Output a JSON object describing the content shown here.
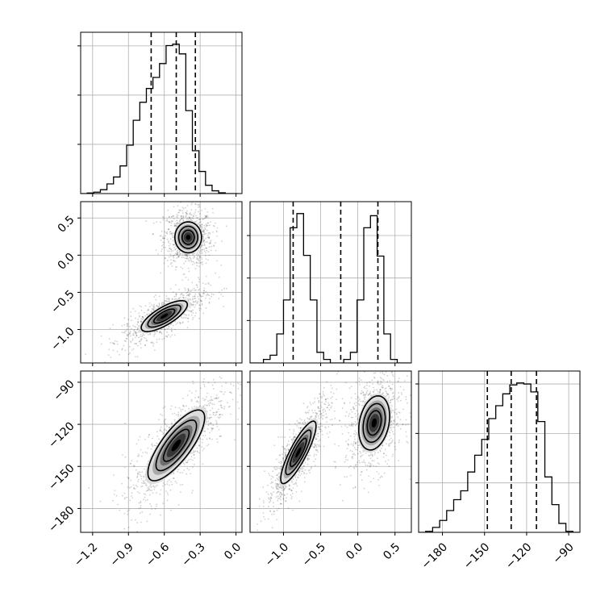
{
  "chart_data": {
    "type": "corner",
    "title": "",
    "parameters": [
      {
        "name": "",
        "range": [
          -1.3,
          0.05
        ],
        "ticks": [
          -1.2,
          -0.9,
          -0.6,
          -0.3,
          0.0
        ],
        "tick_labels": [
          "−1.2",
          "−0.9",
          "−0.6",
          "−0.3",
          "0.0"
        ]
      },
      {
        "name": "",
        "range": [
          -1.45,
          0.72
        ],
        "ticks": [
          -1.0,
          -0.5,
          0.0,
          0.5
        ],
        "tick_labels": [
          "−1.0",
          "−0.5",
          "0.0",
          "0.5"
        ]
      },
      {
        "name": "",
        "range": [
          -197,
          -82
        ],
        "ticks": [
          -180,
          -150,
          -120,
          -90
        ],
        "tick_labels": [
          "−180",
          "−150",
          "−120",
          "−90"
        ]
      }
    ],
    "histograms": [
      {
        "parameter": 0,
        "bin_edges": [
          -1.3,
          -1.245,
          -1.19,
          -1.135,
          -1.08,
          -1.025,
          -0.97,
          -0.915,
          -0.86,
          -0.805,
          -0.75,
          -0.695,
          -0.64,
          -0.585,
          -0.53,
          -0.475,
          -0.42,
          -0.365,
          -0.31,
          -0.255,
          -0.2,
          -0.145,
          -0.09,
          -0.035,
          0.02
        ],
        "counts": [
          0,
          2,
          5,
          14,
          35,
          60,
          100,
          175,
          265,
          330,
          380,
          420,
          470,
          535,
          540,
          505,
          300,
          155,
          80,
          30,
          10,
          3,
          0,
          0
        ],
        "quantiles": [
          -0.71,
          -0.5,
          -0.34
        ],
        "y_ticks": [
          178,
          356,
          534
        ]
      },
      {
        "parameter": 1,
        "bin_edges": [
          -1.45,
          -1.36,
          -1.27,
          -1.18,
          -1.09,
          -1.0,
          -0.91,
          -0.82,
          -0.73,
          -0.64,
          -0.55,
          -0.46,
          -0.37,
          -0.28,
          -0.19,
          -0.1,
          -0.01,
          0.08,
          0.17,
          0.26,
          0.35,
          0.44,
          0.53,
          0.62,
          0.71
        ],
        "counts": [
          0,
          0,
          25,
          55,
          205,
          445,
          955,
          1055,
          760,
          445,
          75,
          25,
          0,
          0,
          25,
          75,
          445,
          955,
          1040,
          755,
          205,
          25,
          0,
          0
        ],
        "quantiles": [
          -0.87,
          -0.23,
          0.27
        ],
        "y_ticks": [
          300,
          600,
          900
        ]
      },
      {
        "parameter": 2,
        "bin_edges": [
          -197,
          -192,
          -187,
          -182,
          -177,
          -172,
          -167,
          -162,
          -157,
          -152,
          -147,
          -142,
          -137,
          -132,
          -127,
          -122,
          -117,
          -112,
          -107,
          -102,
          -97,
          -92,
          -87,
          -82
        ],
        "counts": [
          0,
          5,
          25,
          60,
          110,
          165,
          210,
          305,
          390,
          470,
          575,
          640,
          700,
          745,
          755,
          750,
          710,
          560,
          280,
          140,
          45,
          5,
          0
        ],
        "quantiles": [
          -148,
          -131,
          -113
        ],
        "y_ticks": [
          250,
          500,
          750
        ]
      }
    ],
    "panels_2d": [
      {
        "x_param": 0,
        "y_param": 1,
        "modes": [
          {
            "x": -0.4,
            "y": 0.24,
            "sx": 0.075,
            "sy": 0.14,
            "rho": 0.0
          },
          {
            "x": -0.6,
            "y": -0.82,
            "sx": 0.13,
            "sy": 0.14,
            "rho": 0.75
          }
        ]
      },
      {
        "x_param": 0,
        "y_param": 2,
        "modes": [
          {
            "x": -0.5,
            "y": -135,
            "sx": 0.16,
            "sy": 17,
            "rho": 0.78
          }
        ]
      },
      {
        "x_param": 1,
        "y_param": 2,
        "modes": [
          {
            "x": 0.22,
            "y": -119,
            "sx": 0.14,
            "sy": 13,
            "rho": 0.25
          },
          {
            "x": -0.8,
            "y": -140,
            "sx": 0.16,
            "sy": 15,
            "rho": 0.85
          }
        ]
      }
    ]
  }
}
